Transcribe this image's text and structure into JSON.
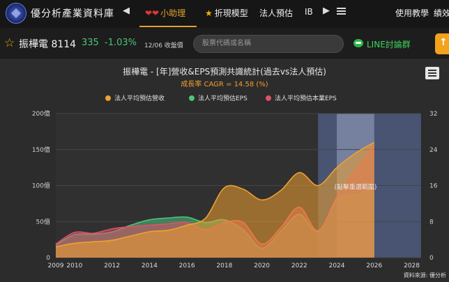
{
  "header": {
    "site_title": "優分析產業資料庫",
    "nav": [
      {
        "label": "小助理",
        "hearts": "❤❤"
      },
      {
        "label": "折現模型",
        "star": "★"
      },
      {
        "label": "法人預估"
      },
      {
        "label": "IB"
      }
    ],
    "right_items": [
      {
        "label": "使用教學"
      },
      {
        "label": "績效"
      }
    ]
  },
  "stock": {
    "name_code": "振樺電 8114",
    "price": "335",
    "change": "-1.03%",
    "date_label": "12/06 收盤價",
    "search_placeholder": "股票代碼或名稱",
    "line_label": "LINE討論群",
    "orange_btn": "↑"
  },
  "chart": {
    "title": "振樺電 - [年]營收&EPS預測共識統計(過去vs法人預估)",
    "subtitle": "成長率 CAGR = 14.58 (%)",
    "source_label": "資料來源: 優分析",
    "hover_label": "(點擊重選範圍)"
  },
  "chart_data": {
    "type": "area",
    "x": [
      2009,
      2010,
      2011,
      2012,
      2013,
      2014,
      2015,
      2016,
      2017,
      2018,
      2019,
      2020,
      2021,
      2022,
      2023,
      2024,
      2025,
      2026
    ],
    "x_ticks": [
      "2009",
      "2010",
      "2012",
      "2014",
      "2016",
      "2018",
      "2020",
      "2022",
      "2024",
      "2026",
      "2028"
    ],
    "y_left_ticks": [
      "0",
      "50億",
      "100億",
      "150億",
      "200億"
    ],
    "y_right_ticks": [
      "0",
      "8",
      "16",
      "24",
      "32"
    ],
    "ylim_left": [
      0,
      200
    ],
    "ylim_right": [
      0,
      32
    ],
    "legend_position": "top-center",
    "series": [
      {
        "name": "法人平均預估營收",
        "axis": "left",
        "color": "#f0a030",
        "values": [
          15,
          20,
          22,
          24,
          30,
          36,
          38,
          45,
          55,
          97,
          95,
          80,
          93,
          118,
          100,
          125,
          145,
          160
        ]
      },
      {
        "name": "法人平均預估EPS",
        "axis": "right",
        "color": "#4fc27c",
        "values": [
          2.8,
          5.1,
          5.2,
          5.7,
          7.2,
          8.4,
          8.8,
          9.0,
          7.8,
          8.4,
          6.2,
          2.1,
          5.8,
          9.6,
          5.8,
          12.8,
          14.1,
          15.2
        ]
      },
      {
        "name": "法人平均預估本業EPS",
        "axis": "right",
        "color": "#e0506a",
        "values": [
          3.0,
          5.6,
          5.4,
          6.4,
          6.9,
          7.2,
          7.5,
          7.8,
          6.2,
          7.8,
          7.8,
          3.0,
          6.6,
          11.2,
          6.0,
          13.4,
          19.5,
          25.0
        ]
      }
    ],
    "forecast_band": {
      "from": 2023,
      "to": 2026
    },
    "highlight_band": {
      "from": 2024,
      "to": 2026
    }
  }
}
